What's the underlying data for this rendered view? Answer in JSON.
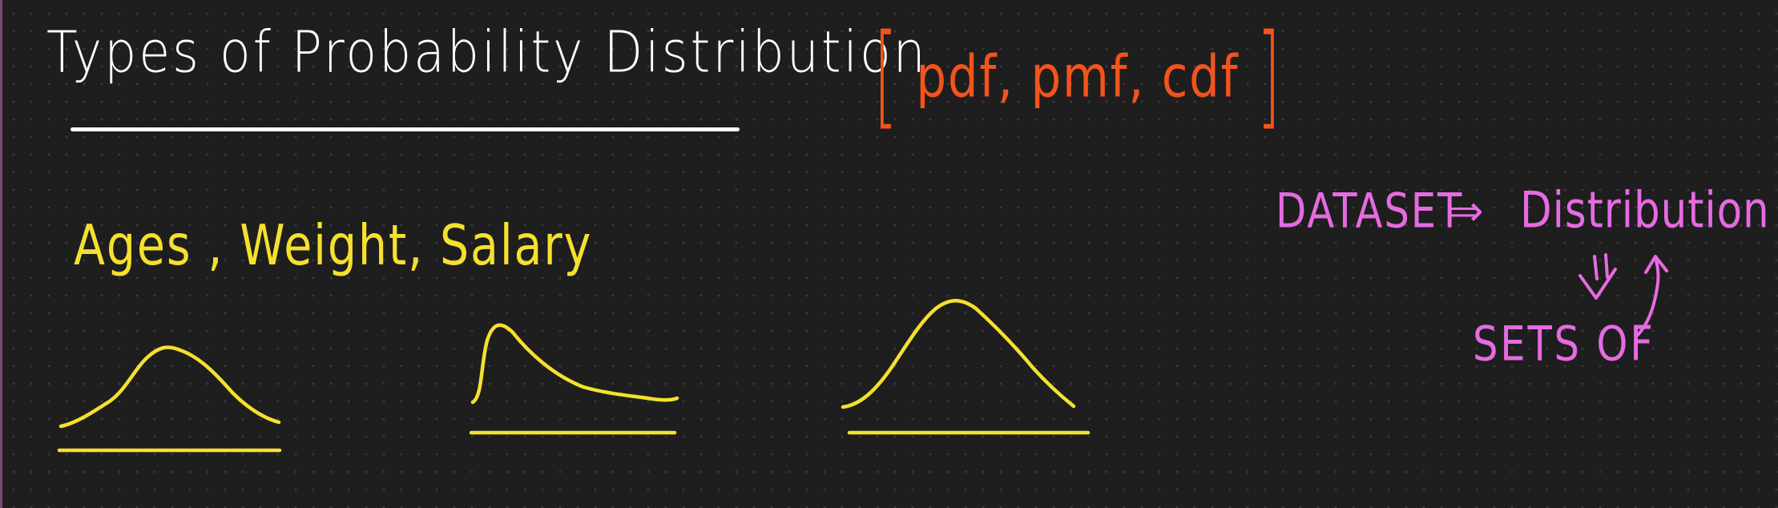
{
  "canvas": {
    "background": "#1e1e1f",
    "dot_color": "#3a3a3c",
    "margin_rule_color": "#7a4a6e"
  },
  "heading": {
    "text": "Types of Probability Distribution",
    "color": "#ffffff"
  },
  "function_types": {
    "text": "pdf, pmf, cdf",
    "open_bracket": "[",
    "close_bracket": "]",
    "color": "#f2541b"
  },
  "examples": {
    "text": "Ages , Weight, Salary",
    "color": "#f5e02e"
  },
  "distribution_sketches": [
    {
      "shape": "symmetric-bell",
      "color": "#f5e02e"
    },
    {
      "shape": "right-skewed",
      "color": "#f5e02e"
    },
    {
      "shape": "symmetric-bell",
      "color": "#f5e02e"
    }
  ],
  "flow": {
    "dataset": "DATASET",
    "arrow": "⇒",
    "distribution": "Distribution",
    "sets_of": "SETS OF",
    "color": "#e66be0"
  }
}
